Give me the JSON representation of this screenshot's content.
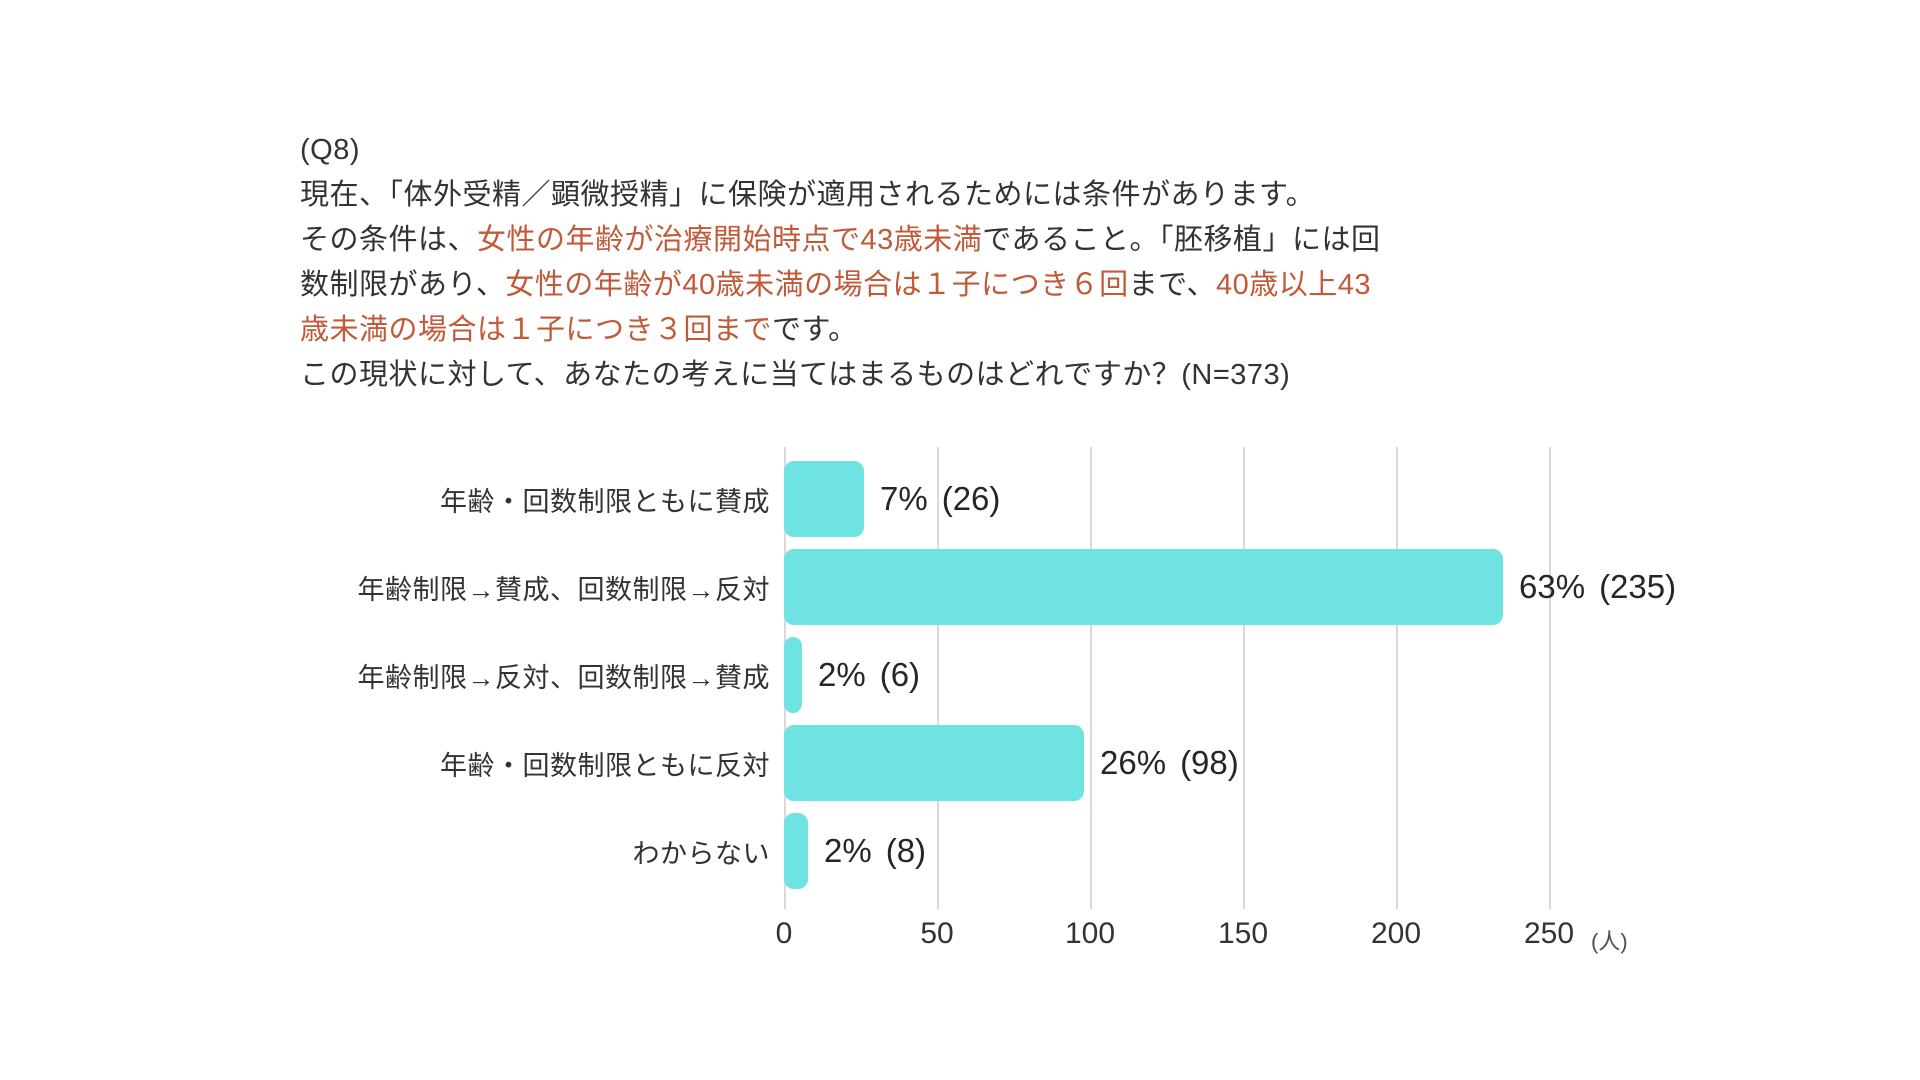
{
  "question": {
    "label": "(Q8)",
    "line1": "現在、「体外受精／顕微授精」に保険が適用されるためには条件があります。",
    "line2_black1": "その条件は、",
    "line2_red": "女性の年齢が治療開始時点で43歳未満",
    "line2_black2": "であること。「胚移植」には回",
    "line3_black1": "数制限があり、",
    "line3_red1": "女性の年齢が40歳未満の場合は１子につき６回",
    "line3_black2": "まで、",
    "line3_red2": "40歳以上43",
    "line4_red": "歳未満の場合は１子につき３回まで",
    "line4_black": "です。",
    "line5": "この現状に対して、あなたの考えに当てはまるものはどれですか？(N=373)"
  },
  "colors": {
    "bar": "#6FE3E1",
    "grid": "#D9D9D9",
    "highlight_red": "#C05A38",
    "text": "#333333",
    "value_text": "#262626"
  },
  "chart_data": {
    "type": "bar",
    "orientation": "horizontal",
    "title": "",
    "xlabel": "",
    "ylabel": "",
    "unit_label": "(人)",
    "n_total": 373,
    "categories": [
      "年齢・回数制限ともに賛成",
      "年齢制限→賛成、回数制限→反対",
      "年齢制限→反対、回数制限→賛成",
      "年齢・回数制限ともに反対",
      "わからない"
    ],
    "values": [
      26,
      235,
      6,
      98,
      8
    ],
    "percent_labels": [
      "7%",
      "63%",
      "2%",
      "26%",
      "2%"
    ],
    "count_labels": [
      "(26)",
      "(235)",
      "(6)",
      "(98)",
      "(8)"
    ],
    "x_ticks": [
      0,
      50,
      100,
      150,
      200,
      250
    ],
    "xlim": [
      0,
      250
    ],
    "grid": true,
    "legend": false
  }
}
